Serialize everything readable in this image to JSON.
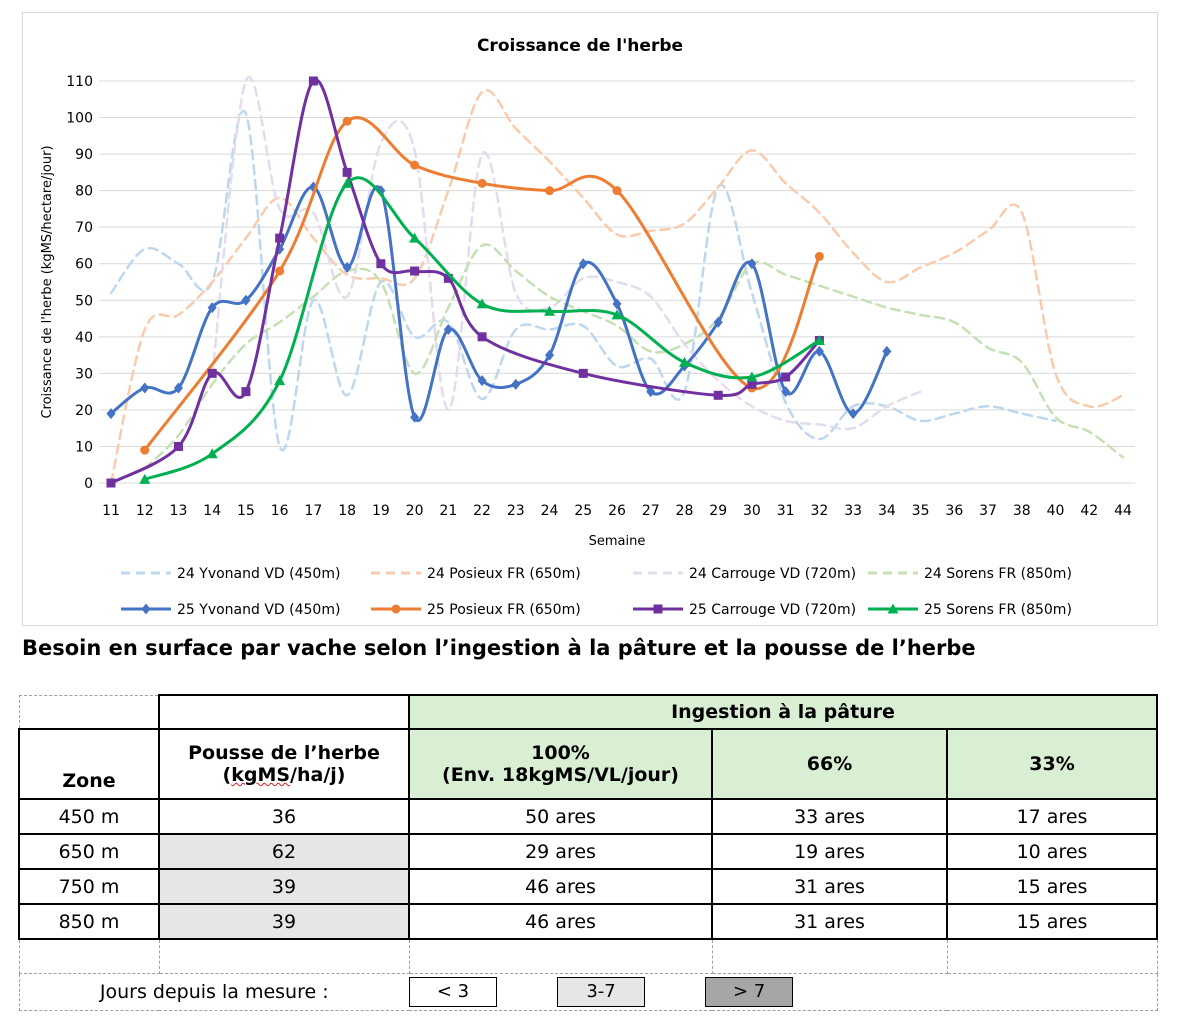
{
  "heading": "Besoin en surface par vache selon l’ingestion à la pâture et la pousse de l’herbe",
  "chart_data": {
    "type": "line",
    "title": "Croissance de l'herbe",
    "xlabel": "Semaine",
    "ylabel": "Croissance de l'herbe (kgMS/hectare/jour)",
    "ylim": [
      0,
      110
    ],
    "yticks": [
      0,
      10,
      20,
      30,
      40,
      50,
      60,
      70,
      80,
      90,
      100,
      110
    ],
    "categories": [
      "11",
      "12",
      "13",
      "14",
      "15",
      "16",
      "17",
      "18",
      "19",
      "20",
      "21",
      "22",
      "23",
      "24",
      "25",
      "26",
      "27",
      "28",
      "29",
      "30",
      "31",
      "32",
      "33",
      "34",
      "35",
      "36",
      "37",
      "38",
      "40",
      "42",
      "44"
    ],
    "grid": "horizontal",
    "legend_position": "bottom",
    "series": [
      {
        "name": "24 Yvonand VD (450m)",
        "color": "#bdd7ee",
        "dashed": true,
        "marker": "none",
        "values": [
          52,
          64,
          60,
          55,
          101,
          10,
          50,
          24,
          55,
          40,
          44,
          23,
          42,
          42,
          43,
          32,
          34,
          25,
          81,
          52,
          22,
          12,
          21,
          21,
          17,
          19,
          21,
          19,
          17,
          null,
          null
        ]
      },
      {
        "name": "24 Posieux FR (650m)",
        "color": "#f8cbad",
        "dashed": true,
        "marker": "none",
        "values": [
          0,
          42,
          46,
          55,
          67,
          78,
          67,
          57,
          56,
          56,
          80,
          107,
          97,
          88,
          78,
          68,
          69,
          71,
          81,
          91,
          82,
          74,
          63,
          55,
          59,
          63,
          69,
          74,
          30,
          21,
          24
        ]
      },
      {
        "name": "24 Carrouge VD (720m)",
        "color": "#e3dcee",
        "dashed": true,
        "marker": "none",
        "values": [
          null,
          null,
          null,
          29,
          110,
          75,
          74,
          51,
          93,
          91,
          20,
          90,
          52,
          48,
          56,
          55,
          51,
          38,
          28,
          21,
          17,
          16,
          15,
          21,
          25,
          null,
          null,
          null,
          null,
          null,
          null
        ]
      },
      {
        "name": "24 Sorens FR (850m)",
        "color": "#c5e0b4",
        "dashed": true,
        "marker": "none",
        "values": [
          null,
          4,
          13,
          27,
          38,
          44,
          51,
          58,
          55,
          30,
          48,
          65,
          58,
          51,
          47,
          43,
          36,
          38,
          45,
          60,
          57,
          54,
          51,
          48,
          46,
          44,
          37,
          33,
          18,
          14,
          7
        ]
      },
      {
        "name": "25 Yvonand VD (450m)",
        "color": "#4472c4",
        "dashed": false,
        "marker": "diamond",
        "values": [
          19,
          26,
          26,
          48,
          50,
          64,
          81,
          59,
          80,
          18,
          42,
          28,
          27,
          35,
          60,
          49,
          25,
          32,
          44,
          60,
          25,
          36,
          19,
          36,
          null,
          null,
          null,
          null,
          null,
          null,
          null
        ]
      },
      {
        "name": "25 Posieux FR (650m)",
        "color": "#ed7d31",
        "dashed": false,
        "marker": "circle",
        "values": [
          null,
          9,
          null,
          null,
          null,
          58,
          null,
          99,
          null,
          87,
          null,
          82,
          null,
          80,
          null,
          80,
          null,
          null,
          null,
          26,
          null,
          62,
          null,
          null,
          null,
          null,
          null,
          null,
          null,
          null,
          null
        ]
      },
      {
        "name": "25 Carrouge VD (720m)",
        "color": "#7030a0",
        "dashed": false,
        "marker": "square",
        "values": [
          0,
          null,
          10,
          30,
          25,
          67,
          110,
          85,
          60,
          58,
          56,
          40,
          null,
          null,
          30,
          null,
          null,
          null,
          24,
          27,
          29,
          39,
          null,
          null,
          null,
          null,
          null,
          null,
          null,
          null,
          null
        ]
      },
      {
        "name": "25 Sorens FR (850m)",
        "color": "#00b050",
        "dashed": false,
        "marker": "triangle",
        "values": [
          null,
          1,
          null,
          8,
          null,
          28,
          null,
          82,
          null,
          67,
          null,
          49,
          null,
          47,
          null,
          46,
          null,
          33,
          null,
          29,
          null,
          39,
          null,
          null,
          null,
          null,
          null,
          null,
          null,
          null,
          null
        ]
      }
    ]
  },
  "table": {
    "group_header": "Ingestion à la pâture",
    "col_zone": "Zone",
    "col_growth_line1": "Pousse de l’herbe",
    "col_growth_line2_pre": "(",
    "col_growth_line2_word": "kgMS",
    "col_growth_line2_post": "/ha/j)",
    "col_100_line1": "100%",
    "col_100_line2": "(Env. 18kgMS/VL/jour)",
    "col_66": "66%",
    "col_33": "33%",
    "rows": [
      {
        "zone": "450 m",
        "growth": "36",
        "c100": "50 ares",
        "c66": "33 ares",
        "c33": "17 ares"
      },
      {
        "zone": "650 m",
        "growth": "62",
        "c100": "29 ares",
        "c66": "19 ares",
        "c33": "10 ares"
      },
      {
        "zone": "750 m",
        "growth": "39",
        "c100": "46 ares",
        "c66": "31 ares",
        "c33": "15 ares"
      },
      {
        "zone": "850 m",
        "growth": "39",
        "c100": "46 ares",
        "c66": "31 ares",
        "c33": "15 ares"
      }
    ],
    "days_label": "Jours depuis la mesure :",
    "days_lt3": "< 3",
    "days_3_7": "3-7",
    "days_gt7": "> 7",
    "colors": {
      "green": "#d9efd3",
      "grey_light": "#e6e6e6",
      "grey_dark": "#a6a6a6"
    }
  }
}
